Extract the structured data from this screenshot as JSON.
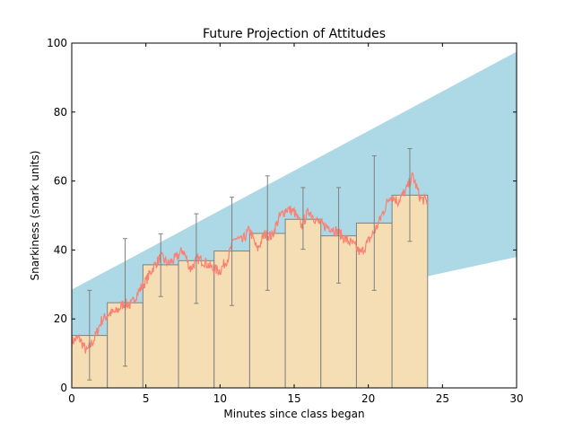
{
  "chart_data": {
    "type": "bar",
    "title": "Future Projection of Attitudes",
    "xlabel": "Minutes since class began",
    "ylabel": "Snarkiness (snark units)",
    "xlim": [
      0,
      30
    ],
    "ylim": [
      0,
      100
    ],
    "xticks": [
      0,
      5,
      10,
      15,
      20,
      25,
      30
    ],
    "yticks": [
      0,
      20,
      40,
      60,
      80,
      100
    ],
    "grid": false,
    "colors": {
      "band": "#add8e6",
      "bars": "#f5deb3",
      "bar_edge": "#808080",
      "errorbar": "#808080",
      "line": "#fa8072",
      "axes": "#000000"
    },
    "projection_band": {
      "x": [
        0,
        30
      ],
      "upper": [
        28.5,
        97.5
      ],
      "lower": [
        10.0,
        38.0
      ]
    },
    "bars": {
      "bin_width": 2.4,
      "x_start": [
        0,
        2.4,
        4.8,
        7.2,
        9.6,
        12.0,
        14.4,
        16.8,
        19.2,
        21.6
      ],
      "values": [
        15.2,
        24.7,
        35.7,
        36.9,
        39.7,
        44.8,
        48.9,
        44.1,
        47.8,
        55.9
      ],
      "error_low": [
        2.3,
        6.3,
        26.5,
        24.5,
        23.9,
        28.3,
        40.2,
        30.4,
        28.3,
        42.5
      ],
      "error_high": [
        28.3,
        43.3,
        44.7,
        50.5,
        55.3,
        61.5,
        58.1,
        58.1,
        67.3,
        69.4
      ]
    },
    "line": {
      "x_max": 24,
      "anchors": [
        [
          0,
          13.5
        ],
        [
          0.5,
          14.5
        ],
        [
          1.0,
          10.5
        ],
        [
          1.5,
          14.0
        ],
        [
          2.0,
          19.5
        ],
        [
          2.5,
          21.5
        ],
        [
          3.0,
          22.0
        ],
        [
          3.5,
          24.5
        ],
        [
          4.0,
          24.0
        ],
        [
          4.5,
          28.0
        ],
        [
          5.0,
          31.0
        ],
        [
          5.5,
          35.0
        ],
        [
          6.0,
          38.0
        ],
        [
          6.5,
          36.0
        ],
        [
          7.0,
          37.5
        ],
        [
          7.5,
          40.0
        ],
        [
          8.0,
          34.5
        ],
        [
          8.5,
          37.5
        ],
        [
          9.0,
          36.5
        ],
        [
          9.5,
          34.5
        ],
        [
          10.0,
          34.0
        ],
        [
          10.5,
          37.5
        ],
        [
          11.0,
          43.5
        ],
        [
          11.5,
          42.5
        ],
        [
          12.0,
          46.0
        ],
        [
          12.5,
          40.0
        ],
        [
          13.0,
          44.5
        ],
        [
          13.5,
          44.0
        ],
        [
          14.0,
          49.5
        ],
        [
          14.5,
          52.0
        ],
        [
          15.0,
          51.0
        ],
        [
          15.5,
          47.0
        ],
        [
          16.0,
          51.5
        ],
        [
          16.5,
          48.5
        ],
        [
          17.0,
          47.0
        ],
        [
          17.5,
          46.5
        ],
        [
          18.0,
          45.0
        ],
        [
          18.5,
          43.0
        ],
        [
          19.0,
          41.5
        ],
        [
          19.5,
          39.0
        ],
        [
          20.0,
          42.5
        ],
        [
          20.5,
          46.0
        ],
        [
          21.0,
          51.0
        ],
        [
          21.5,
          56.0
        ],
        [
          22.0,
          54.0
        ],
        [
          22.5,
          57.0
        ],
        [
          23.0,
          61.5
        ],
        [
          23.5,
          55.0
        ],
        [
          24.0,
          54.0
        ]
      ]
    }
  }
}
